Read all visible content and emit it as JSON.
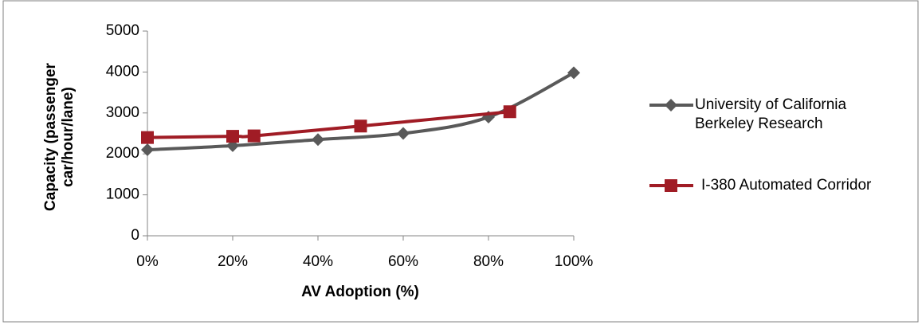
{
  "chart_data": {
    "type": "line",
    "x_label": "AV Adoption (%)",
    "y_label": "Capacity (passenger car/hour/lane)",
    "xlim": [
      0,
      100
    ],
    "xticks": [
      {
        "value": 0,
        "label": "0%"
      },
      {
        "value": 20,
        "label": "20%"
      },
      {
        "value": 40,
        "label": "40%"
      },
      {
        "value": 60,
        "label": "60%"
      },
      {
        "value": 80,
        "label": "80%"
      },
      {
        "value": 100,
        "label": "100%"
      }
    ],
    "ylim": [
      0,
      5000
    ],
    "yticks": [
      0,
      1000,
      2000,
      3000,
      4000,
      5000
    ],
    "grid": false,
    "legend": "right",
    "series": [
      {
        "name": "University of California Berkeley Research",
        "color": "#595959",
        "marker": "diamond",
        "x": [
          0,
          20,
          40,
          60,
          80,
          100
        ],
        "values": [
          2100,
          2200,
          2350,
          2500,
          2900,
          3980
        ]
      },
      {
        "name": "I-380 Automated Corridor",
        "color": "#a01c25",
        "marker": "square",
        "x": [
          0,
          20,
          25,
          50,
          85
        ],
        "values": [
          2400,
          2430,
          2440,
          2680,
          3030
        ]
      }
    ]
  }
}
